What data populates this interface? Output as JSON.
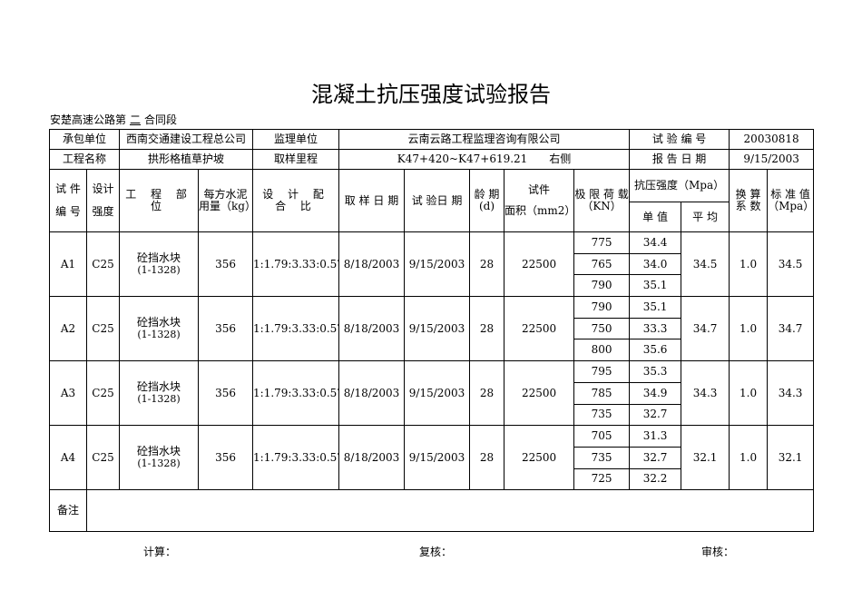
{
  "title": "混凝土抗压强度试验报告",
  "section": {
    "prefix": "安楚高速公路第",
    "number": "二",
    "suffix": "合同段"
  },
  "info": {
    "contractor_label": "承包单位",
    "contractor": "西南交通建设工程总公司",
    "supervisor_label": "监理单位",
    "supervisor": "云南云路工程监理咨询有限公司",
    "test_no_label": "试 验 编 号",
    "test_no": "20030818",
    "project_label": "工程名称",
    "project": "拱形格植草护坡",
    "mileage_label": "取样里程",
    "mileage": "K47+420~K47+619.21　　右侧",
    "report_date_label": "报 告 日 期",
    "report_date": "9/15/2003"
  },
  "headers": {
    "specimen_a": "试 件",
    "specimen_b": "编 号",
    "design_a": "设计",
    "design_b": "强度",
    "location": "工 程 部 位",
    "cement": "每方水泥用量（kg）",
    "mix": "设 计 配 合 比",
    "sample_date": "取 样 日 期",
    "test_date": "试 验日 期",
    "age": "龄 期(d)",
    "area_a": "试件",
    "area_b": "面积（mm2）",
    "load": "极 限 荷 载（KN）",
    "strength": "抗压强度（Mpa）",
    "single": "单 值",
    "avg": "平 均",
    "factor": "换 算 系 数",
    "std": "标 准 值（Mpa）"
  },
  "rows": [
    {
      "id": "A1",
      "grade": "C25",
      "location": "砼挡水块",
      "location_sub": "(1-1328)",
      "cement": "356",
      "mix": "1:1.79:3.33:0.57",
      "sample_date": "8/18/2003",
      "test_date": "9/15/2003",
      "age": "28",
      "area": "22500",
      "loads": [
        "775",
        "765",
        "790"
      ],
      "singles": [
        "34.4",
        "34.0",
        "35.1"
      ],
      "avg": "34.5",
      "factor": "1.0",
      "std": "34.5"
    },
    {
      "id": "A2",
      "grade": "C25",
      "location": "砼挡水块",
      "location_sub": "(1-1328)",
      "cement": "356",
      "mix": "1:1.79:3.33:0.57",
      "sample_date": "8/18/2003",
      "test_date": "9/15/2003",
      "age": "28",
      "area": "22500",
      "loads": [
        "790",
        "750",
        "800"
      ],
      "singles": [
        "35.1",
        "33.3",
        "35.6"
      ],
      "avg": "34.7",
      "factor": "1.0",
      "std": "34.7"
    },
    {
      "id": "A3",
      "grade": "C25",
      "location": "砼挡水块",
      "location_sub": "(1-1328)",
      "cement": "356",
      "mix": "1:1.79:3.33:0.57",
      "sample_date": "8/18/2003",
      "test_date": "9/15/2003",
      "age": "28",
      "area": "22500",
      "loads": [
        "795",
        "785",
        "735"
      ],
      "singles": [
        "35.3",
        "34.9",
        "32.7"
      ],
      "avg": "34.3",
      "factor": "1.0",
      "std": "34.3"
    },
    {
      "id": "A4",
      "grade": "C25",
      "location": "砼挡水块",
      "location_sub": "(1-1328)",
      "cement": "356",
      "mix": "1:1.79:3.33:0.57",
      "sample_date": "8/18/2003",
      "test_date": "9/15/2003",
      "age": "28",
      "area": "22500",
      "loads": [
        "705",
        "735",
        "725"
      ],
      "singles": [
        "31.3",
        "32.7",
        "32.2"
      ],
      "avg": "32.1",
      "factor": "1.0",
      "std": "32.1"
    }
  ],
  "remarks_label": "备注",
  "footer": {
    "calc": "计算：",
    "review": "复核：",
    "audit": "审核："
  }
}
